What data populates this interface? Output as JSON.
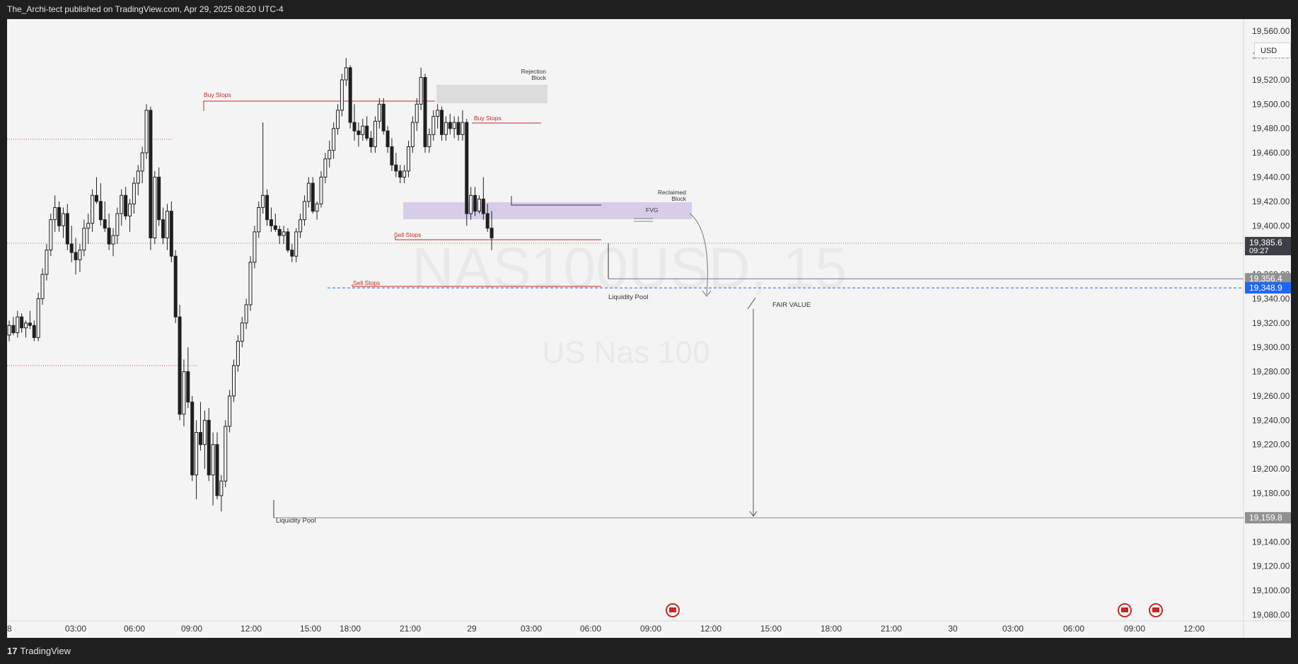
{
  "header": {
    "text": "The_Archi-tect published on TradingView.com, Apr 29, 2025 08:20 UTC-4"
  },
  "footer": {
    "logo": "17",
    "brand": "TradingView"
  },
  "currency": "USD",
  "watermark": {
    "symbol": "NAS100USD, 15",
    "name": "US Nas 100"
  },
  "price_labels": [
    {
      "value": "19,385.6",
      "sub": "09:27",
      "bg": "#3c3f46"
    },
    {
      "value": "19,356.4",
      "bg": "#909090"
    },
    {
      "value": "19,348.9",
      "bg": "#1e66f5"
    },
    {
      "value": "19,159.8",
      "bg": "#909090"
    }
  ],
  "annotations": [
    {
      "text": "Buy Stops",
      "color": "#c62828"
    },
    {
      "text": "Rejection\nBlock",
      "color": "#333333"
    },
    {
      "text": "Buy Stops",
      "color": "#c62828"
    },
    {
      "text": "Reclaimed\nBlock",
      "color": "#333333"
    },
    {
      "text": "FVG",
      "color": "#333333"
    },
    {
      "text": "Sell Stops",
      "color": "#c62828"
    },
    {
      "text": "Sell Stops",
      "color": "#c62828"
    },
    {
      "text": "Liquidity Pool",
      "color": "#333333"
    },
    {
      "text": "FAIR VALUE",
      "color": "#333333"
    },
    {
      "text": "Liquidity Pool",
      "color": "#333333"
    }
  ],
  "chart_data": {
    "type": "candlestick",
    "symbol": "NAS100USD",
    "interval": "15",
    "yticks": [
      19080,
      19100,
      19120,
      19140,
      19160,
      19180,
      19200,
      19220,
      19240,
      19260,
      19280,
      19300,
      19320,
      19340,
      19360,
      19380,
      19400,
      19420,
      19440,
      19460,
      19480,
      19500,
      19520,
      19540,
      19560
    ],
    "ylim": [
      19075,
      19570
    ],
    "xticks": [
      "8",
      "03:00",
      "06:00",
      "09:00",
      "12:00",
      "15:00",
      "18:00",
      "21:00",
      "29",
      "03:00",
      "06:00",
      "09:00",
      "12:00",
      "15:00",
      "18:00",
      "21:00",
      "30",
      "03:00",
      "06:00",
      "09:00",
      "12:00"
    ],
    "current_price": 19385.6,
    "fair_value": 19348.9,
    "liquidity_pool_upper": 19356.4,
    "liquidity_pool_lower": 19159.8,
    "candles": [
      [
        19310,
        19322,
        19305,
        19318
      ],
      [
        19318,
        19325,
        19310,
        19312
      ],
      [
        19312,
        19330,
        19308,
        19325
      ],
      [
        19325,
        19328,
        19312,
        19316
      ],
      [
        19316,
        19322,
        19308,
        19320
      ],
      [
        19320,
        19330,
        19315,
        19318
      ],
      [
        19318,
        19322,
        19305,
        19308
      ],
      [
        19308,
        19345,
        19305,
        19340
      ],
      [
        19340,
        19365,
        19335,
        19360
      ],
      [
        19360,
        19385,
        19355,
        19380
      ],
      [
        19380,
        19410,
        19375,
        19405
      ],
      [
        19405,
        19425,
        19395,
        19415
      ],
      [
        19415,
        19420,
        19395,
        19400
      ],
      [
        19400,
        19415,
        19390,
        19410
      ],
      [
        19410,
        19418,
        19380,
        19385
      ],
      [
        19385,
        19400,
        19370,
        19378
      ],
      [
        19378,
        19390,
        19360,
        19372
      ],
      [
        19372,
        19385,
        19362,
        19380
      ],
      [
        19380,
        19405,
        19375,
        19398
      ],
      [
        19398,
        19410,
        19385,
        19402
      ],
      [
        19402,
        19430,
        19395,
        19425
      ],
      [
        19425,
        19440,
        19418,
        19420
      ],
      [
        19420,
        19435,
        19400,
        19405
      ],
      [
        19405,
        19420,
        19395,
        19398
      ],
      [
        19398,
        19410,
        19380,
        19385
      ],
      [
        19385,
        19398,
        19375,
        19392
      ],
      [
        19392,
        19415,
        19385,
        19410
      ],
      [
        19410,
        19430,
        19400,
        19425
      ],
      [
        19425,
        19432,
        19405,
        19408
      ],
      [
        19408,
        19422,
        19395,
        19418
      ],
      [
        19418,
        19440,
        19410,
        19435
      ],
      [
        19435,
        19450,
        19425,
        19445
      ],
      [
        19445,
        19465,
        19435,
        19460
      ],
      [
        19460,
        19500,
        19455,
        19495
      ],
      [
        19495,
        19498,
        19380,
        19390
      ],
      [
        19390,
        19445,
        19385,
        19440
      ],
      [
        19440,
        19448,
        19400,
        19405
      ],
      [
        19405,
        19415,
        19385,
        19390
      ],
      [
        19390,
        19418,
        19380,
        19412
      ],
      [
        19412,
        19420,
        19370,
        19375
      ],
      [
        19375,
        19380,
        19320,
        19325
      ],
      [
        19325,
        19335,
        19240,
        19245
      ],
      [
        19245,
        19290,
        19235,
        19280
      ],
      [
        19280,
        19300,
        19250,
        19255
      ],
      [
        19255,
        19260,
        19190,
        19195
      ],
      [
        19195,
        19240,
        19175,
        19230
      ],
      [
        19230,
        19255,
        19215,
        19220
      ],
      [
        19220,
        19248,
        19200,
        19240
      ],
      [
        19240,
        19250,
        19190,
        19195
      ],
      [
        19195,
        19230,
        19170,
        19220
      ],
      [
        19220,
        19230,
        19175,
        19178
      ],
      [
        19178,
        19195,
        19165,
        19190
      ],
      [
        19190,
        19240,
        19185,
        19235
      ],
      [
        19235,
        19265,
        19230,
        19260
      ],
      [
        19260,
        19290,
        19255,
        19285
      ],
      [
        19285,
        19310,
        19280,
        19305
      ],
      [
        19305,
        19325,
        19300,
        19320
      ],
      [
        19320,
        19340,
        19315,
        19335
      ],
      [
        19335,
        19375,
        19330,
        19370
      ],
      [
        19370,
        19400,
        19365,
        19395
      ],
      [
        19395,
        19420,
        19390,
        19415
      ],
      [
        19415,
        19485,
        19410,
        19425
      ],
      [
        19425,
        19430,
        19400,
        19405
      ],
      [
        19405,
        19415,
        19395,
        19400
      ],
      [
        19400,
        19410,
        19395,
        19397
      ],
      [
        19397,
        19400,
        19385,
        19392
      ],
      [
        19392,
        19400,
        19385,
        19395
      ],
      [
        19395,
        19398,
        19378,
        19380
      ],
      [
        19380,
        19385,
        19370,
        19375
      ],
      [
        19375,
        19398,
        19370,
        19395
      ],
      [
        19395,
        19410,
        19390,
        19405
      ],
      [
        19405,
        19425,
        19400,
        19420
      ],
      [
        19420,
        19440,
        19415,
        19435
      ],
      [
        19435,
        19440,
        19410,
        19412
      ],
      [
        19412,
        19420,
        19405,
        19418
      ],
      [
        19418,
        19445,
        19415,
        19440
      ],
      [
        19440,
        19460,
        19435,
        19455
      ],
      [
        19455,
        19470,
        19448,
        19462
      ],
      [
        19462,
        19485,
        19455,
        19480
      ],
      [
        19480,
        19500,
        19475,
        19495
      ],
      [
        19495,
        19525,
        19490,
        19520
      ],
      [
        19520,
        19538,
        19515,
        19530
      ],
      [
        19530,
        19532,
        19480,
        19485
      ],
      [
        19485,
        19500,
        19470,
        19478
      ],
      [
        19478,
        19485,
        19465,
        19475
      ],
      [
        19475,
        19488,
        19470,
        19482
      ],
      [
        19482,
        19490,
        19470,
        19472
      ],
      [
        19472,
        19478,
        19460,
        19465
      ],
      [
        19465,
        19490,
        19460,
        19486
      ],
      [
        19486,
        19505,
        19480,
        19500
      ],
      [
        19500,
        19505,
        19475,
        19478
      ],
      [
        19478,
        19482,
        19460,
        19465
      ],
      [
        19465,
        19472,
        19445,
        19450
      ],
      [
        19450,
        19460,
        19440,
        19445
      ],
      [
        19445,
        19450,
        19435,
        19440
      ],
      [
        19440,
        19450,
        19435,
        19445
      ],
      [
        19445,
        19470,
        19440,
        19465
      ],
      [
        19465,
        19490,
        19460,
        19485
      ],
      [
        19485,
        19505,
        19478,
        19500
      ],
      [
        19500,
        19530,
        19495,
        19522
      ],
      [
        19522,
        19525,
        19460,
        19465
      ],
      [
        19465,
        19480,
        19460,
        19475
      ],
      [
        19475,
        19495,
        19470,
        19490
      ],
      [
        19490,
        19500,
        19480,
        19495
      ],
      [
        19495,
        19498,
        19470,
        19475
      ],
      [
        19475,
        19490,
        19470,
        19485
      ],
      [
        19485,
        19492,
        19475,
        19480
      ],
      [
        19480,
        19490,
        19472,
        19485
      ],
      [
        19485,
        19490,
        19470,
        19475
      ],
      [
        19475,
        19495,
        19470,
        19485
      ],
      [
        19485,
        19488,
        19400,
        19410
      ],
      [
        19410,
        19432,
        19405,
        19425
      ],
      [
        19425,
        19432,
        19408,
        19412
      ],
      [
        19412,
        19425,
        19410,
        19422
      ],
      [
        19422,
        19440,
        19405,
        19410
      ],
      [
        19410,
        19418,
        19395,
        19398
      ],
      [
        19398,
        19412,
        19380,
        19390
      ]
    ]
  }
}
